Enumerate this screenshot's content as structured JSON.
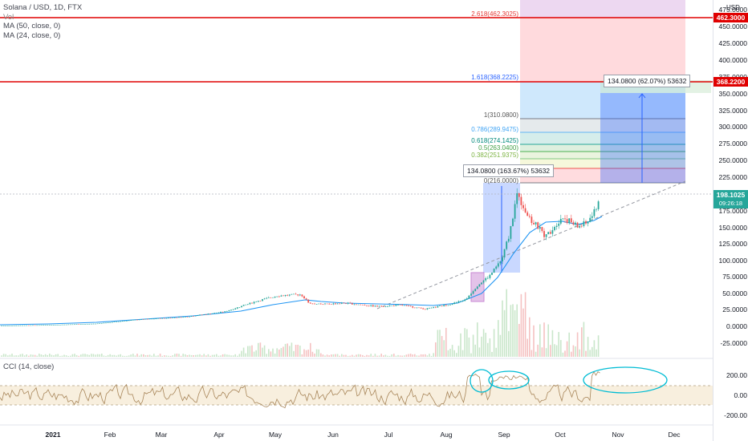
{
  "legend": {
    "title": "Solana / USD, 1D, FTX",
    "vol": "Vol",
    "ma50": "MA (50, close, 0)",
    "ma24": "MA (24, close, 0)"
  },
  "cci_legend": "CCI (14, close)",
  "currency": "USD",
  "price_axis": [
    "475.0000",
    "450.0000",
    "425.0000",
    "400.0000",
    "375.0000",
    "350.0000",
    "325.0000",
    "300.0000",
    "275.0000",
    "250.0000",
    "225.0000",
    "175.0000",
    "150.0000",
    "125.0000",
    "100.0000",
    "75.0000",
    "50.0000",
    "25.0000",
    "0.0000",
    "-25.0000"
  ],
  "cci_axis": [
    "200.00",
    "0.00",
    "-200.00"
  ],
  "time_axis": [
    "2021",
    "Feb",
    "Mar",
    "Apr",
    "May",
    "Jun",
    "Jul",
    "Aug",
    "Sep",
    "Oct",
    "Nov",
    "Dec"
  ],
  "price_labels": {
    "top_line": "462.3000",
    "second_line": "368.2200",
    "last_price": "198.1025",
    "countdown": "09:26:18"
  },
  "fib_levels": [
    {
      "label": "2.618(462.3025)"
    },
    {
      "label": "1.618(368.2225)"
    },
    {
      "label": "1(310.0800)"
    },
    {
      "label": "0.786(289.9475)"
    },
    {
      "label": "0.618(274.1425)"
    },
    {
      "label": "0.5(263.0400)"
    },
    {
      "label": "0.382(251.9375)"
    },
    {
      "label": "0(216.0000)"
    }
  ],
  "tooltips": {
    "measure1": "134.0800 (163.67%) 53632",
    "measure2": "134.0800 (62.07%) 53632"
  },
  "colors": {
    "up": "#26a69a",
    "down": "#ef5350",
    "ma": "#2196f3",
    "red_line": "#e00000",
    "cci": "#9c7c4f",
    "green_label": "#26a69a"
  },
  "chart_data": {
    "type": "candlestick",
    "title": "Solana / USD, 1D, FTX",
    "ylim": [
      -25,
      475
    ],
    "approx_close_series": [
      {
        "x": "2021-01",
        "y": 2
      },
      {
        "x": "2021-02",
        "y": 5
      },
      {
        "x": "2021-03",
        "y": 14
      },
      {
        "x": "2021-04",
        "y": 25
      },
      {
        "x": "2021-05",
        "y": 45
      },
      {
        "x": "2021-05-20",
        "y": 35
      },
      {
        "x": "2021-06",
        "y": 33
      },
      {
        "x": "2021-07",
        "y": 30
      },
      {
        "x": "2021-07-25",
        "y": 27
      },
      {
        "x": "2021-08",
        "y": 38
      },
      {
        "x": "2021-08-20",
        "y": 70
      },
      {
        "x": "2021-09-01",
        "y": 130
      },
      {
        "x": "2021-09-08",
        "y": 210
      },
      {
        "x": "2021-09-20",
        "y": 145
      },
      {
        "x": "2021-10-01",
        "y": 165
      },
      {
        "x": "2021-10-15",
        "y": 155
      },
      {
        "x": "2021-10-24",
        "y": 198.1
      }
    ],
    "horizontal_lines": [
      462.3,
      368.22
    ]
  }
}
